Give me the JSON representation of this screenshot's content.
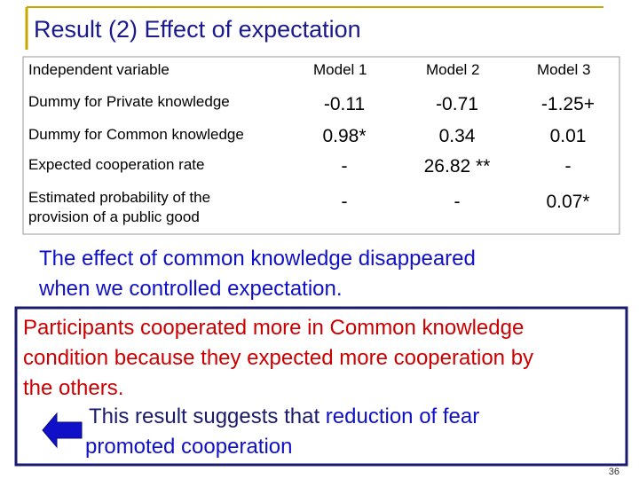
{
  "title": "Result (2) Effect of expectation",
  "table": {
    "header": [
      "Independent variable",
      "Model 1",
      "Model 2",
      "Model 3"
    ],
    "rows": [
      [
        "Dummy for Private knowledge",
        "-0.11",
        "-0.71",
        "-1.25+"
      ],
      [
        "Dummy for Common knowledge",
        "0.98*",
        "0.34",
        "0.01"
      ],
      [
        "Expected cooperation rate",
        "-",
        "26.82 **",
        "-"
      ],
      [
        [
          "Estimated probability of the",
          "provision of a public good"
        ],
        "-",
        "-",
        "0.07*"
      ]
    ]
  },
  "note": [
    "The effect of common knowledge disappeared",
    "when we controlled expectation."
  ],
  "box": {
    "lines": [
      "Participants cooperated more in Common knowledge",
      "condition because they expected more cooperation by",
      "the others."
    ],
    "conclusion": {
      "prefix": "This result suggests that ",
      "highlight": "reduction of fear",
      "line2": "promoted cooperation"
    }
  },
  "page_number": "36"
}
